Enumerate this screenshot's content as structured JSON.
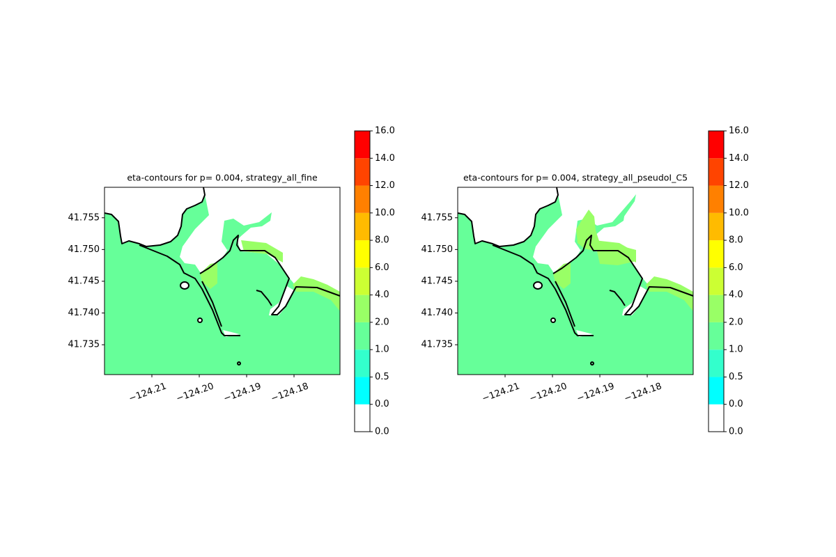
{
  "chart_data": [
    {
      "type": "contour",
      "title": "eta-contours for p= 0.004, strategy_all_fine",
      "xlim": [
        -124.22,
        -124.1703
      ],
      "ylim": [
        41.7303,
        41.7598
      ],
      "xticks": [
        {
          "value": -124.21,
          "label": "−124.21"
        },
        {
          "value": -124.2,
          "label": "−124.20"
        },
        {
          "value": -124.19,
          "label": "−124.19"
        },
        {
          "value": -124.18,
          "label": "−124.18"
        }
      ],
      "yticks": [
        41.735,
        {
          "value": 41.74,
          "label": "41.740"
        },
        41.745,
        {
          "value": 41.75,
          "label": "41.750"
        },
        41.755
      ],
      "levels": [
        {
          "value": 0,
          "label": "0.0"
        },
        {
          "value": 0,
          "label": "0.0"
        },
        {
          "value": 0.5,
          "label": "0.5"
        },
        {
          "value": 1,
          "label": "1.0"
        },
        {
          "value": 2,
          "label": "2.0"
        },
        {
          "value": 4,
          "label": "4.0"
        },
        {
          "value": 6,
          "label": "6.0"
        },
        {
          "value": 8,
          "label": "8.0"
        },
        {
          "value": 10,
          "label": "10.0"
        },
        {
          "value": 12,
          "label": "12.0"
        },
        {
          "value": 14,
          "label": "14.0"
        },
        {
          "value": 16,
          "label": "16.0"
        }
      ],
      "colors": [
        "#ffffff",
        "#00ffff",
        "#33ffcc",
        "#66ff99",
        "#99ff66",
        "#ccff33",
        "#ffff00",
        "#ffbb00",
        "#ff8000",
        "#ff4400",
        "#ff0000"
      ]
    },
    {
      "type": "contour",
      "title": "eta-contours for p= 0.004, strategy_all_pseudoI_C5",
      "xlim": [
        -124.22,
        -124.1703
      ],
      "ylim": [
        41.7303,
        41.7598
      ],
      "xticks": [
        {
          "value": -124.21,
          "label": "−124.21"
        },
        {
          "value": -124.2,
          "label": "−124.20"
        },
        {
          "value": -124.19,
          "label": "−124.19"
        },
        {
          "value": -124.18,
          "label": "−124.18"
        }
      ],
      "yticks": [
        41.735,
        {
          "value": 41.74,
          "label": "41.740"
        },
        41.745,
        {
          "value": 41.75,
          "label": "41.750"
        },
        41.755
      ],
      "levels": [
        {
          "value": 0,
          "label": "0.0"
        },
        {
          "value": 0,
          "label": "0.0"
        },
        {
          "value": 0.5,
          "label": "0.5"
        },
        {
          "value": 1,
          "label": "1.0"
        },
        {
          "value": 2,
          "label": "2.0"
        },
        {
          "value": 4,
          "label": "4.0"
        },
        {
          "value": 6,
          "label": "6.0"
        },
        {
          "value": 8,
          "label": "8.0"
        },
        {
          "value": 10,
          "label": "10.0"
        },
        {
          "value": 12,
          "label": "12.0"
        },
        {
          "value": 14,
          "label": "14.0"
        },
        {
          "value": 16,
          "label": "16.0"
        }
      ],
      "colors": [
        "#ffffff",
        "#00ffff",
        "#33ffcc",
        "#66ff99",
        "#99ff66",
        "#ccff33",
        "#ffff00",
        "#ffbb00",
        "#ff8000",
        "#ff4400",
        "#ff0000"
      ]
    }
  ]
}
